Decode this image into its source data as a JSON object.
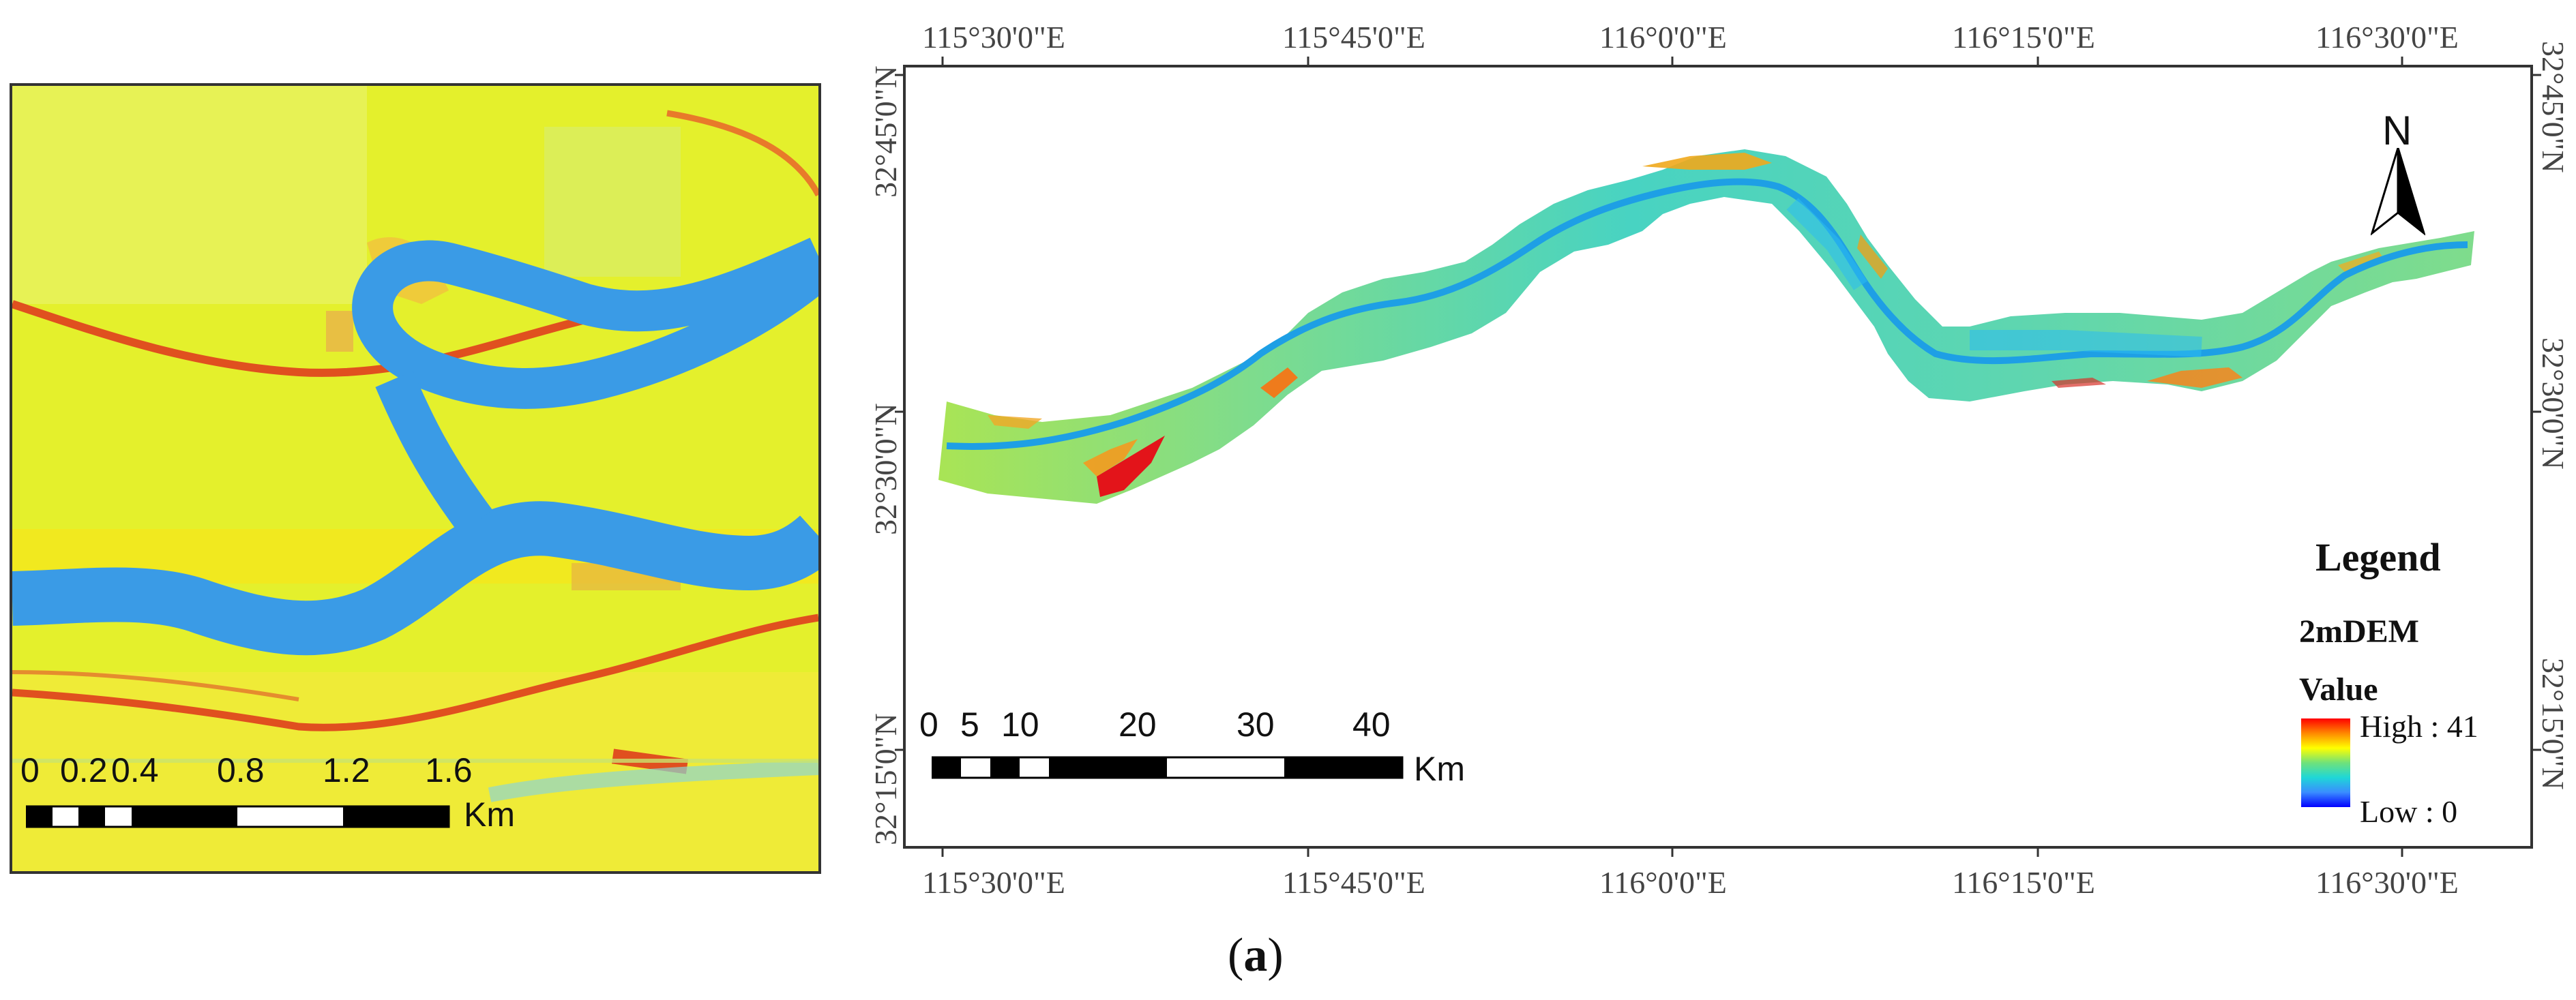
{
  "inset": {
    "scale_ticks": [
      "0",
      "0.2",
      "0.4",
      "0.8",
      "1.2",
      "1.6"
    ],
    "scale_unit": "Km"
  },
  "main_map": {
    "top_lon_labels": [
      "115°30'0\"E",
      "115°45'0\"E",
      "116°0'0\"E",
      "116°15'0\"E",
      "116°30'0\"E"
    ],
    "bottom_lon_labels": [
      "115°30'0\"E",
      "115°45'0\"E",
      "116°0'0\"E",
      "116°15'0\"E",
      "116°30'0\"E"
    ],
    "lat_labels": [
      "32°45'0\"N",
      "32°30'0\"N",
      "32°15'0\"N"
    ],
    "north_label": "N",
    "scale_ticks": [
      "0",
      "5",
      "10",
      "20",
      "30",
      "40"
    ],
    "scale_unit": "Km"
  },
  "legend": {
    "title": "Legend",
    "layer": "2mDEM",
    "field": "Value",
    "high": "High : 41",
    "low": "Low : 0",
    "colors": [
      "#ff0000",
      "#ff8800",
      "#ffff00",
      "#6fe27a",
      "#1fd7d7",
      "#3a8dff",
      "#0000ff"
    ]
  },
  "caption": {
    "open": "(",
    "letter": "a",
    "close": ")"
  }
}
